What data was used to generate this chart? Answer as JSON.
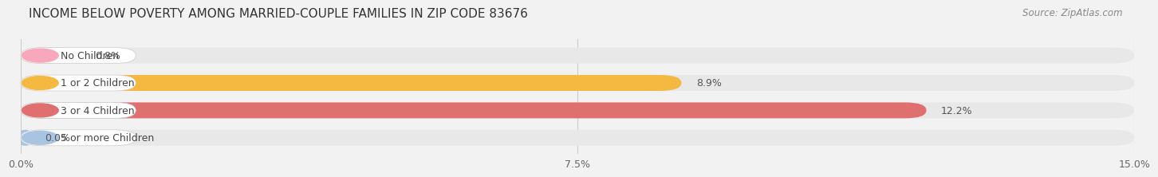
{
  "title": "INCOME BELOW POVERTY AMONG MARRIED-COUPLE FAMILIES IN ZIP CODE 83676",
  "source": "Source: ZipAtlas.com",
  "categories": [
    "No Children",
    "1 or 2 Children",
    "3 or 4 Children",
    "5 or more Children"
  ],
  "values": [
    0.8,
    8.9,
    12.2,
    0.0
  ],
  "bar_colors": [
    "#f7a8bc",
    "#f5b942",
    "#e07070",
    "#a8c4e0"
  ],
  "xlim_max": 15.0,
  "xticks": [
    0.0,
    7.5,
    15.0
  ],
  "xtick_labels": [
    "0.0%",
    "7.5%",
    "15.0%"
  ],
  "bg_color": "#f2f2f2",
  "bar_bg_color": "#e8e8e8",
  "pill_bg_color": "#f8f8f8",
  "title_fontsize": 11,
  "source_fontsize": 8.5,
  "label_fontsize": 9,
  "value_fontsize": 9,
  "tick_fontsize": 9,
  "bar_height": 0.58,
  "pill_rounding": 0.29
}
